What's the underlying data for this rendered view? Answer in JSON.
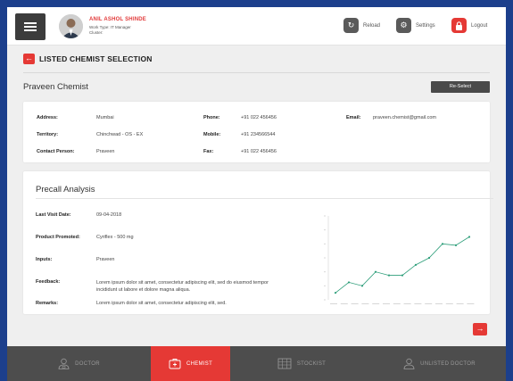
{
  "header": {
    "user_name": "ANIL ASHOL SHINDE",
    "work_type": "Work Type: IT Manager",
    "cluster": "Cluster:",
    "reload_label": "Reload",
    "settings_label": "Settings",
    "logout_label": "Logout"
  },
  "section": {
    "title": "LISTED CHEMIST SELECTION"
  },
  "chemist": {
    "name": "Praveen Chemist",
    "reselect_label": "Re-Select",
    "address_label": "Address:",
    "address": "Mumbai",
    "territory_label": "Territory:",
    "territory": "Chinchwad - OS - EX",
    "contact_label": "Contact Person:",
    "contact": "Praveen",
    "phone_label": "Phone:",
    "phone": "+91 022 456456",
    "mobile_label": "Mobile:",
    "mobile": "+91 234566544",
    "fax_label": "Fax:",
    "fax": "+91 022 456456",
    "email_label": "Email:",
    "email": "praveen.chemist@gmail.com"
  },
  "precall": {
    "title": "Precall Analysis",
    "last_visit_label": "Last Visit Date:",
    "last_visit": "09-04-2018",
    "product_label": "Product Promoted:",
    "product": "Cyriflex - 500 mg",
    "inputs_label": "Inputs:",
    "inputs": "Praveen",
    "feedback_label": "Feedback:",
    "feedback": "Lorem ipsum dolor sit amet, consectetur adipiscing elit, sed do eiusmod tempor incididunt ut labore et dolore magna aliqua.",
    "remarks_label": "Remarks:",
    "remarks": "Lorem ipsum dolor sit amet, consectetur adipiscing elit, sed."
  },
  "chart_data": {
    "type": "line",
    "color": "#2e9e7a",
    "values": [
      1,
      2.5,
      2,
      4,
      3.5,
      3.5,
      5,
      6,
      8,
      7.8,
      9
    ],
    "ylim": [
      0,
      12
    ]
  },
  "nav": {
    "doctor": "DOCTOR",
    "chemist": "CHEMIST",
    "stockist": "STOCKIST",
    "unlisted": "UNLISTED DOCTOR"
  },
  "colors": {
    "accent": "#e53935",
    "nav_bg": "#4d4d4d"
  }
}
